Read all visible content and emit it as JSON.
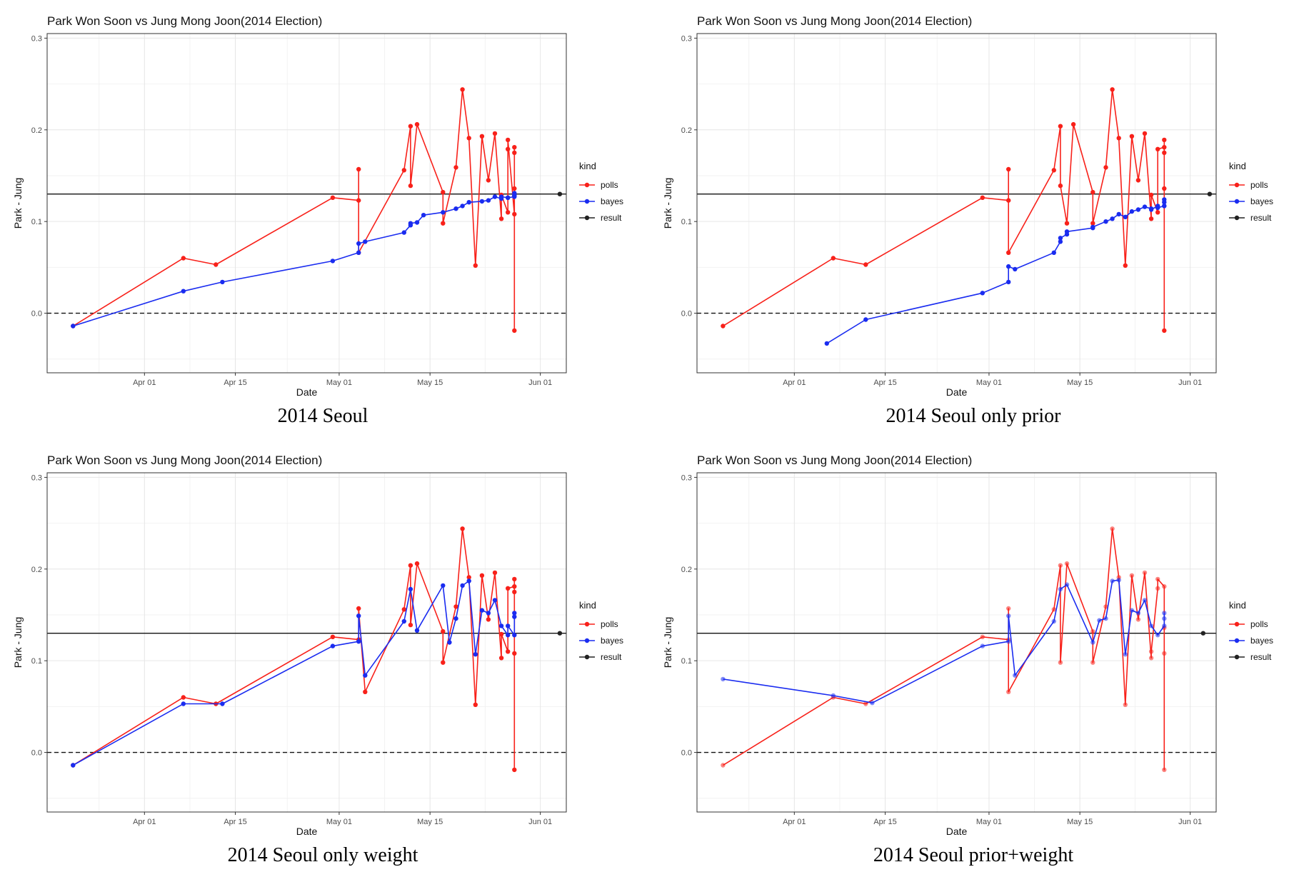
{
  "palette": {
    "polls": "#f8211a",
    "bayes": "#1a2cf0",
    "result": "#222222"
  },
  "axis_common": {
    "ylim": [
      -0.065,
      0.305
    ],
    "yticks": [
      0.0,
      0.1,
      0.2,
      0.3
    ],
    "ytick_labels": [
      "0.0",
      "0.1",
      "0.2",
      "0.3"
    ],
    "xlim": [
      "2014-03-17",
      "2014-06-05"
    ],
    "xticks": [
      "2014-04-01",
      "2014-04-15",
      "2014-05-01",
      "2014-05-15",
      "2014-06-01"
    ],
    "xtick_labels": [
      "Apr 01",
      "Apr 15",
      "May 01",
      "May 15",
      "Jun 01"
    ],
    "xlabel": "Date",
    "ylabel": "Park - Jung",
    "hline_solid": 0.13,
    "hline_dashed": 0.0,
    "grid": true,
    "legend": {
      "title": "kind",
      "labels": [
        "polls",
        "bayes",
        "result"
      ],
      "position": "right"
    }
  },
  "chart_data": [
    {
      "type": "line",
      "title": "Park Won Soon vs Jung Mong Joon(2014 Election)",
      "caption": "2014 Seoul",
      "xlabel": "Date",
      "ylabel": "Park - Jung",
      "series": [
        {
          "name": "polls",
          "x": [
            "2014-03-21",
            "2014-04-07",
            "2014-04-12",
            "2014-04-30",
            "2014-05-04",
            "2014-05-04",
            "2014-05-04",
            "2014-05-11",
            "2014-05-12",
            "2014-05-12",
            "2014-05-13",
            "2014-05-17",
            "2014-05-17",
            "2014-05-19",
            "2014-05-20",
            "2014-05-21",
            "2014-05-22",
            "2014-05-23",
            "2014-05-24",
            "2014-05-25",
            "2014-05-26",
            "2014-05-26",
            "2014-05-27",
            "2014-05-27",
            "2014-05-27",
            "2014-05-28",
            "2014-05-28",
            "2014-05-28",
            "2014-05-28",
            "2014-05-28"
          ],
          "y": [
            -0.014,
            0.06,
            0.053,
            0.126,
            0.123,
            0.157,
            0.066,
            0.156,
            0.204,
            0.139,
            0.206,
            0.132,
            0.098,
            0.159,
            0.244,
            0.191,
            0.052,
            0.193,
            0.145,
            0.196,
            0.103,
            0.129,
            0.11,
            0.179,
            0.189,
            0.108,
            0.181,
            0.175,
            -0.019,
            0.136
          ]
        },
        {
          "name": "bayes",
          "x": [
            "2014-03-21",
            "2014-04-07",
            "2014-04-13",
            "2014-04-30",
            "2014-05-04",
            "2014-05-04",
            "2014-05-05",
            "2014-05-11",
            "2014-05-12",
            "2014-05-12",
            "2014-05-13",
            "2014-05-14",
            "2014-05-17",
            "2014-05-19",
            "2014-05-20",
            "2014-05-21",
            "2014-05-23",
            "2014-05-24",
            "2014-05-25",
            "2014-05-26",
            "2014-05-26",
            "2014-05-27",
            "2014-05-27",
            "2014-05-28",
            "2014-05-28",
            "2014-05-28",
            "2014-05-28"
          ],
          "y": [
            -0.014,
            0.024,
            0.034,
            0.057,
            0.066,
            0.076,
            0.078,
            0.088,
            0.096,
            0.098,
            0.099,
            0.107,
            0.11,
            0.114,
            0.117,
            0.121,
            0.122,
            0.123,
            0.127,
            0.125,
            0.127,
            0.126,
            0.126,
            0.127,
            0.128,
            0.131,
            0.129
          ]
        },
        {
          "name": "result",
          "x": [
            "2014-06-04"
          ],
          "y": [
            0.13
          ]
        }
      ]
    },
    {
      "type": "line",
      "title": "Park Won Soon vs Jung Mong Joon(2014 Election)",
      "caption": "2014 Seoul only prior",
      "xlabel": "Date",
      "ylabel": "Park - Jung",
      "series": [
        {
          "name": "polls",
          "x": [
            "2014-03-21",
            "2014-04-07",
            "2014-04-12",
            "2014-04-30",
            "2014-05-04",
            "2014-05-04",
            "2014-05-04",
            "2014-05-11",
            "2014-05-12",
            "2014-05-12",
            "2014-05-13",
            "2014-05-14",
            "2014-05-17",
            "2014-05-17",
            "2014-05-19",
            "2014-05-20",
            "2014-05-21",
            "2014-05-22",
            "2014-05-23",
            "2014-05-24",
            "2014-05-25",
            "2014-05-26",
            "2014-05-26",
            "2014-05-27",
            "2014-05-27",
            "2014-05-28",
            "2014-05-28",
            "2014-05-28",
            "2014-05-28",
            "2014-05-28"
          ],
          "y": [
            -0.014,
            0.06,
            0.053,
            0.126,
            0.123,
            0.157,
            0.066,
            0.156,
            0.204,
            0.139,
            0.098,
            0.206,
            0.132,
            0.098,
            0.159,
            0.244,
            0.191,
            0.052,
            0.193,
            0.145,
            0.196,
            0.103,
            0.129,
            0.11,
            0.179,
            0.181,
            0.175,
            -0.019,
            0.136,
            0.189
          ]
        },
        {
          "name": "bayes",
          "x": [
            "2014-04-06",
            "2014-04-12",
            "2014-04-30",
            "2014-05-04",
            "2014-05-04",
            "2014-05-05",
            "2014-05-11",
            "2014-05-12",
            "2014-05-12",
            "2014-05-13",
            "2014-05-13",
            "2014-05-17",
            "2014-05-17",
            "2014-05-19",
            "2014-05-20",
            "2014-05-21",
            "2014-05-22",
            "2014-05-23",
            "2014-05-24",
            "2014-05-25",
            "2014-05-26",
            "2014-05-26",
            "2014-05-27",
            "2014-05-27",
            "2014-05-28",
            "2014-05-28",
            "2014-05-28",
            "2014-05-28"
          ],
          "y": [
            -0.033,
            -0.007,
            0.022,
            0.034,
            0.051,
            0.048,
            0.066,
            0.078,
            0.082,
            0.086,
            0.089,
            0.093,
            0.094,
            0.1,
            0.103,
            0.108,
            0.105,
            0.111,
            0.113,
            0.116,
            0.114,
            0.113,
            0.117,
            0.115,
            0.117,
            0.121,
            0.124,
            0.117
          ]
        },
        {
          "name": "result",
          "x": [
            "2014-06-04"
          ],
          "y": [
            0.13
          ]
        }
      ]
    },
    {
      "type": "line",
      "title": "Park Won Soon vs Jung Mong Joon(2014 Election)",
      "caption": "2014 Seoul only weight",
      "xlabel": "Date",
      "ylabel": "Park - Jung",
      "series": [
        {
          "name": "polls",
          "x": [
            "2014-03-21",
            "2014-04-07",
            "2014-04-12",
            "2014-04-30",
            "2014-05-04",
            "2014-05-04",
            "2014-05-05",
            "2014-05-11",
            "2014-05-12",
            "2014-05-12",
            "2014-05-13",
            "2014-05-17",
            "2014-05-17",
            "2014-05-19",
            "2014-05-20",
            "2014-05-21",
            "2014-05-22",
            "2014-05-23",
            "2014-05-24",
            "2014-05-25",
            "2014-05-26",
            "2014-05-26",
            "2014-05-27",
            "2014-05-27",
            "2014-05-28",
            "2014-05-28",
            "2014-05-28",
            "2014-05-28",
            "2014-05-28"
          ],
          "y": [
            -0.014,
            0.06,
            0.053,
            0.126,
            0.123,
            0.157,
            0.066,
            0.156,
            0.204,
            0.139,
            0.206,
            0.132,
            0.098,
            0.159,
            0.244,
            0.191,
            0.052,
            0.193,
            0.145,
            0.196,
            0.103,
            0.129,
            0.11,
            0.179,
            0.181,
            0.175,
            -0.019,
            0.108,
            0.189
          ]
        },
        {
          "name": "bayes",
          "x": [
            "2014-03-21",
            "2014-04-07",
            "2014-04-13",
            "2014-04-30",
            "2014-05-04",
            "2014-05-04",
            "2014-05-05",
            "2014-05-11",
            "2014-05-12",
            "2014-05-13",
            "2014-05-17",
            "2014-05-18",
            "2014-05-19",
            "2014-05-20",
            "2014-05-21",
            "2014-05-22",
            "2014-05-23",
            "2014-05-24",
            "2014-05-25",
            "2014-05-26",
            "2014-05-27",
            "2014-05-27",
            "2014-05-28",
            "2014-05-28",
            "2014-05-28"
          ],
          "y": [
            -0.014,
            0.053,
            0.053,
            0.116,
            0.121,
            0.149,
            0.084,
            0.143,
            0.178,
            0.133,
            0.182,
            0.12,
            0.146,
            0.182,
            0.187,
            0.107,
            0.155,
            0.152,
            0.166,
            0.138,
            0.128,
            0.138,
            0.128,
            0.152,
            0.148
          ]
        },
        {
          "name": "result",
          "x": [
            "2014-06-04"
          ],
          "y": [
            0.13
          ]
        }
      ]
    },
    {
      "type": "line",
      "title": "Park Won Soon vs Jung Mong Joon(2014 Election)",
      "caption": "2014 Seoul prior+weight",
      "xlabel": "Date",
      "ylabel": "Park - Jung",
      "series": [
        {
          "name": "polls",
          "x": [
            "2014-03-21",
            "2014-04-07",
            "2014-04-12",
            "2014-04-30",
            "2014-05-04",
            "2014-05-04",
            "2014-05-04",
            "2014-05-11",
            "2014-05-12",
            "2014-05-12",
            "2014-05-13",
            "2014-05-17",
            "2014-05-17",
            "2014-05-19",
            "2014-05-20",
            "2014-05-21",
            "2014-05-22",
            "2014-05-23",
            "2014-05-24",
            "2014-05-25",
            "2014-05-26",
            "2014-05-26",
            "2014-05-27",
            "2014-05-27",
            "2014-05-28",
            "2014-05-28",
            "2014-05-28",
            "2014-05-28"
          ],
          "y": [
            -0.014,
            0.06,
            0.053,
            0.126,
            0.123,
            0.157,
            0.066,
            0.156,
            0.204,
            0.098,
            0.206,
            0.132,
            0.098,
            0.159,
            0.244,
            0.191,
            0.052,
            0.193,
            0.145,
            0.196,
            0.103,
            0.11,
            0.179,
            0.189,
            0.181,
            -0.019,
            0.108,
            0.136
          ]
        },
        {
          "name": "bayes",
          "x": [
            "2014-03-21",
            "2014-04-07",
            "2014-04-13",
            "2014-04-30",
            "2014-05-04",
            "2014-05-04",
            "2014-05-05",
            "2014-05-11",
            "2014-05-12",
            "2014-05-13",
            "2014-05-17",
            "2014-05-18",
            "2014-05-19",
            "2014-05-20",
            "2014-05-21",
            "2014-05-22",
            "2014-05-23",
            "2014-05-24",
            "2014-05-25",
            "2014-05-26",
            "2014-05-27",
            "2014-05-28",
            "2014-05-28",
            "2014-05-28"
          ],
          "y": [
            0.08,
            0.062,
            0.054,
            0.116,
            0.121,
            0.149,
            0.084,
            0.143,
            0.178,
            0.183,
            0.12,
            0.144,
            0.146,
            0.187,
            0.188,
            0.107,
            0.155,
            0.152,
            0.166,
            0.138,
            0.128,
            0.138,
            0.152,
            0.146
          ]
        },
        {
          "name": "result",
          "x": [
            "2014-06-03"
          ],
          "y": [
            0.13
          ]
        }
      ]
    }
  ]
}
